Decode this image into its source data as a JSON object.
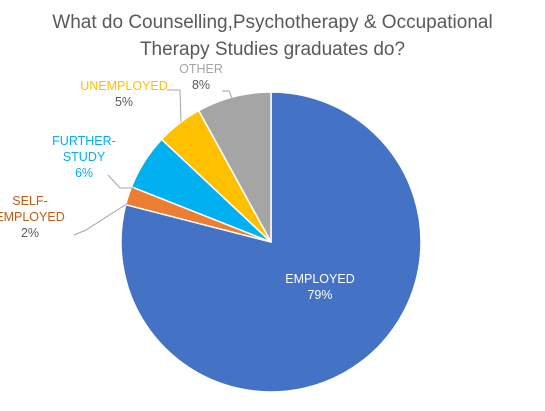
{
  "chart_data": {
    "type": "pie",
    "title_lines": [
      "What do Counselling,Psychotherapy & Occupational",
      "Therapy Studies graduates do?"
    ],
    "start_angle_deg": 0,
    "direction": "clockwise",
    "slices": [
      {
        "category": "EMPLOYED",
        "label_lines": [
          "EMPLOYED"
        ],
        "value": 79,
        "value_label": "79%",
        "color": "#4472C4",
        "label_color": "#FFFFFF",
        "label_placement": "inside"
      },
      {
        "category": "SELF-EMPLOYED",
        "label_lines": [
          "SELF-",
          "EMPLOYED"
        ],
        "value": 2,
        "value_label": "2%",
        "color": "#ED7D31",
        "label_color": "#C55A11",
        "label_placement": "outside-left",
        "leader_line": true
      },
      {
        "category": "FURTHER-STUDY",
        "label_lines": [
          "FURTHER-",
          "STUDY"
        ],
        "value": 6,
        "value_label": "6%",
        "color": "#00B0F0",
        "label_color": "#00B0F0",
        "label_placement": "outside-left",
        "leader_line": true
      },
      {
        "category": "UNEMPLOYED",
        "label_lines": [
          "UNEMPLOYED"
        ],
        "value": 5,
        "value_label": "5%",
        "color": "#FFC000",
        "label_color": "#FFC000",
        "label_placement": "outside-left",
        "leader_line": true
      },
      {
        "category": "OTHER",
        "label_lines": [
          "OTHER"
        ],
        "value": 8,
        "value_label": "8%",
        "color": "#A5A5A5",
        "label_color": "#A5A5A5",
        "label_placement": "outside-top",
        "leader_line": true
      }
    ],
    "leader_line_color": "#A6A6A6",
    "value_label_color_outside": "#595959",
    "legend": "none"
  }
}
